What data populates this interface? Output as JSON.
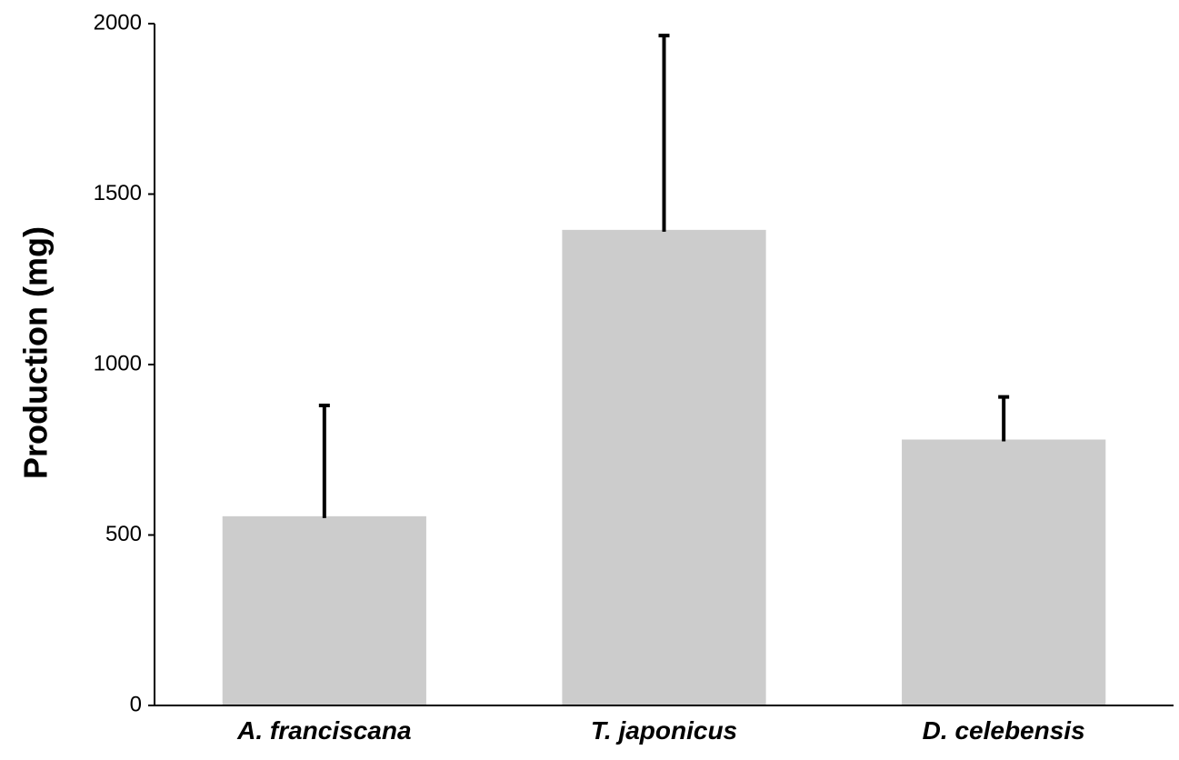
{
  "chart_data": {
    "type": "bar",
    "title": "",
    "xlabel": "",
    "ylabel": "Production (mg)",
    "categories": [
      "A. franciscana",
      "T. japonicus",
      "D. celebensis"
    ],
    "values": [
      555,
      1395,
      780
    ],
    "error_upper": [
      880,
      1965,
      905
    ],
    "ylim": [
      0,
      2000
    ],
    "yticks": [
      0,
      500,
      1000,
      1500,
      2000
    ],
    "ytick_labels": [
      "0",
      "500",
      "1000",
      "1500",
      "2000"
    ],
    "grid": false,
    "legend": "none",
    "colors": {
      "bar": "#cccccc",
      "error_bar": "#000000",
      "axis": "#000000"
    }
  }
}
